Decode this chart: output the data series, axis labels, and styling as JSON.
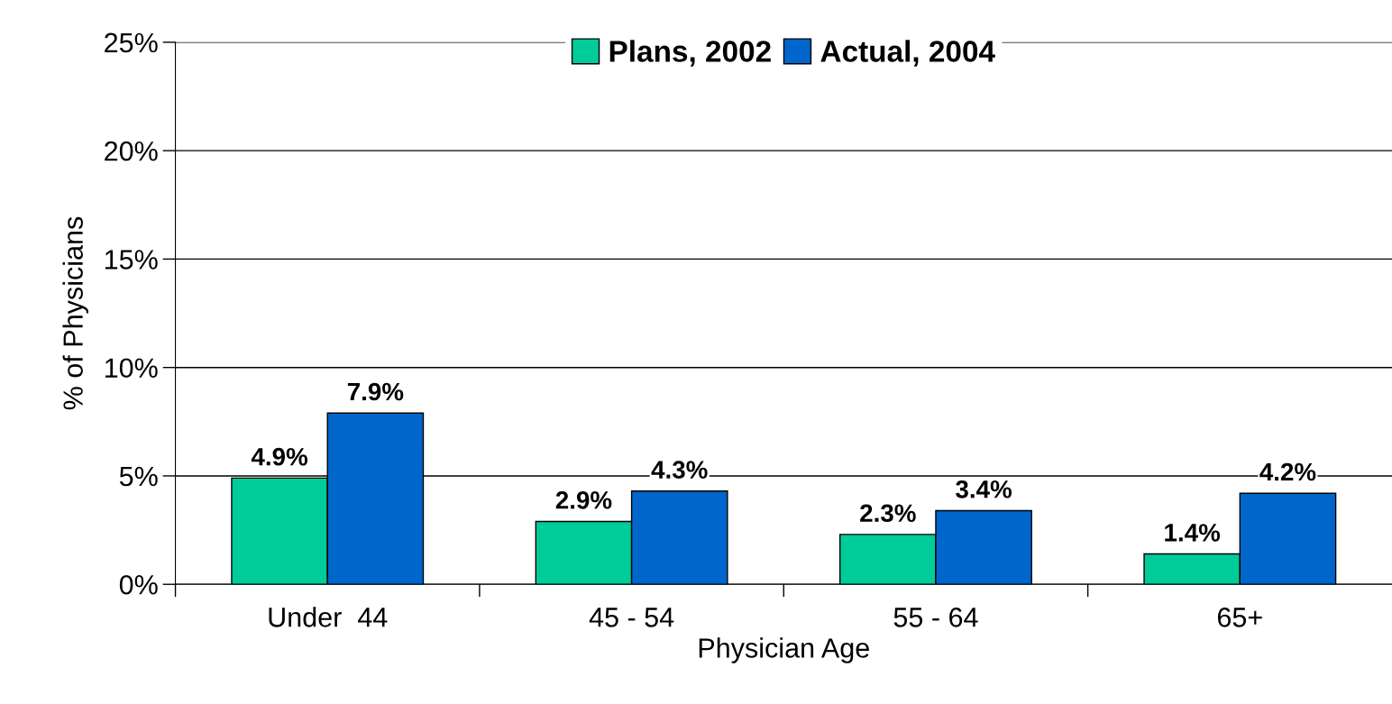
{
  "chart_data": {
    "type": "bar",
    "xlabel": "Physician Age",
    "ylabel": "% of Physicians",
    "categories": [
      "Under  44",
      "45 - 54",
      "55 - 64",
      "65+"
    ],
    "series": [
      {
        "name": "Plans, 2002",
        "color": "#00cc99",
        "values": [
          4.9,
          2.9,
          2.3,
          1.4
        ],
        "value_labels": [
          "4.9%",
          "2.9%",
          "2.3%",
          "1.4%"
        ]
      },
      {
        "name": "Actual, 2004",
        "color": "#0066cc",
        "values": [
          7.9,
          4.3,
          3.4,
          4.2
        ],
        "value_labels": [
          "7.9%",
          "4.3%",
          "3.4%",
          "4.2%"
        ]
      }
    ],
    "ylim": [
      0,
      25
    ],
    "yticks": [
      {
        "value": 0,
        "label": "0%"
      },
      {
        "value": 5,
        "label": "5%"
      },
      {
        "value": 10,
        "label": "10%"
      },
      {
        "value": 15,
        "label": "15%"
      },
      {
        "value": 20,
        "label": "20%"
      },
      {
        "value": 25,
        "label": "25%"
      }
    ],
    "grid": "y",
    "legend": "top"
  }
}
